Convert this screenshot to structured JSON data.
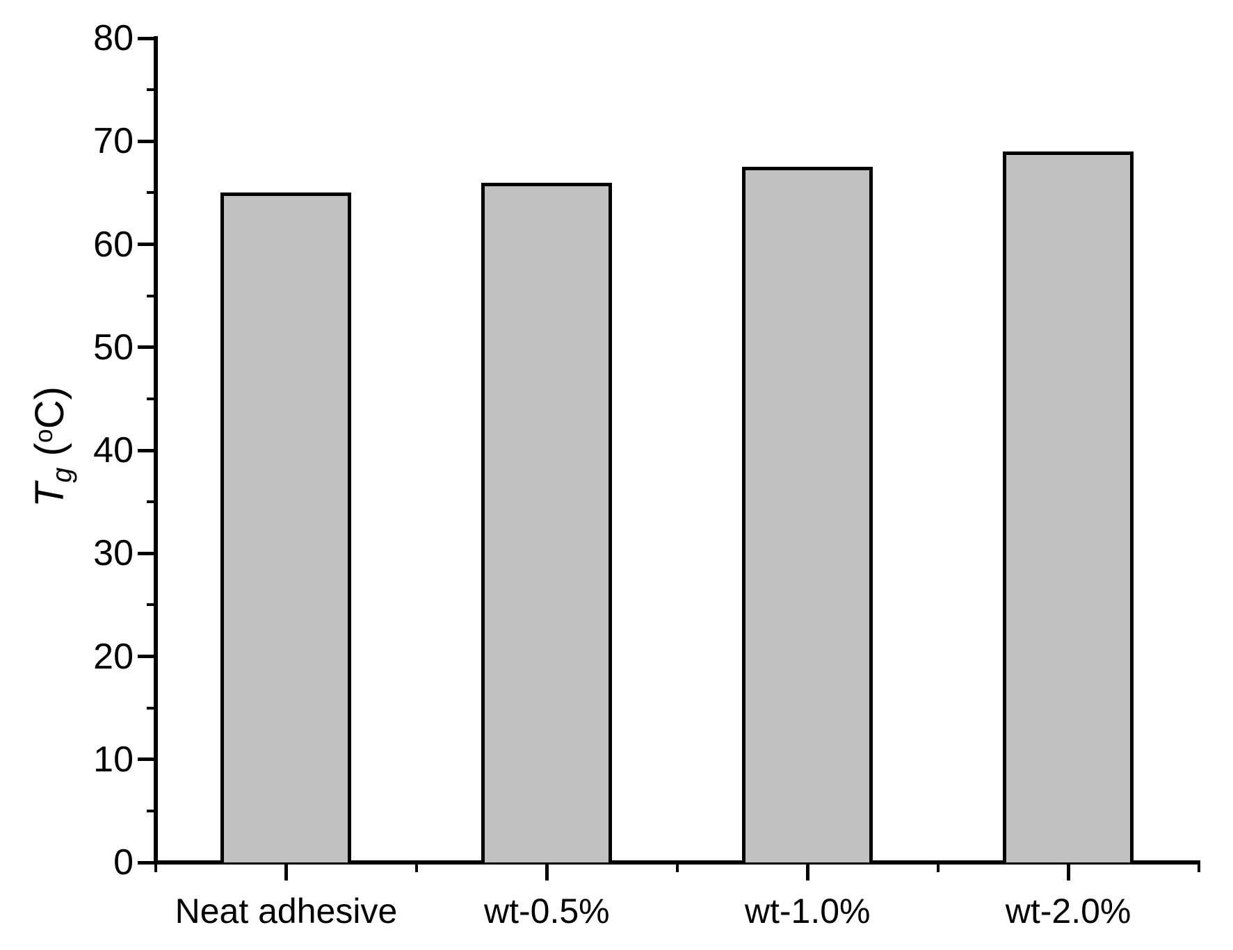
{
  "chart_data": {
    "type": "bar",
    "title": "",
    "categories": [
      "Neat adhesive",
      "wt-0.5%",
      "wt-1.0%",
      "wt-2.0%"
    ],
    "values": [
      65,
      66,
      67.5,
      69
    ],
    "xlabel": "",
    "ylabel": "Tg (oC)",
    "ylabel_parts": {
      "symbol": "T",
      "subscript": "g",
      "mid": " (",
      "superscript": "o",
      "end": "C)"
    },
    "ylim": [
      0,
      80
    ],
    "y_tick_step_major": 10,
    "y_tick_step_minor": 5,
    "y_tick_labels": [
      "0",
      "10",
      "20",
      "30",
      "40",
      "50",
      "60",
      "70",
      "80"
    ],
    "grid": false,
    "legend": false,
    "bar_fill_color": "#c1c1c1",
    "bar_border_color": "#000000",
    "axis_color": "#000000",
    "background_color": "#ffffff"
  }
}
